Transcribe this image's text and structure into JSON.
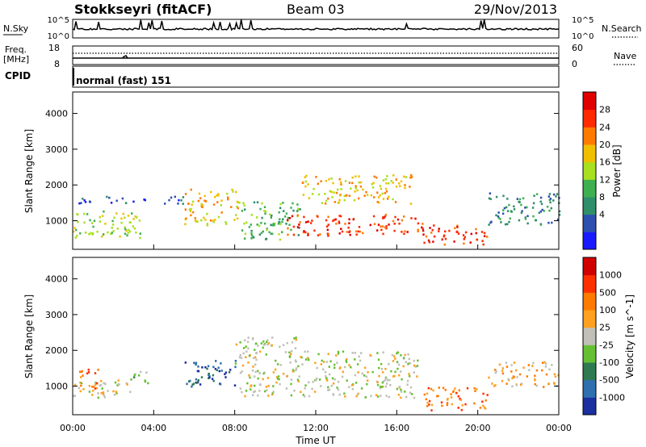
{
  "header": {
    "station": "Stokkseyri (fitACF)",
    "beam": "Beam 03",
    "date": "29/Nov/2013"
  },
  "aux": {
    "nsky_label": "N.Sky",
    "nsky_ticks": [
      "10^5",
      "10^0"
    ],
    "nsearch_label": "N.Search",
    "freq_label_1": "Freq.",
    "freq_label_2": "[MHz]",
    "freq_ticks": [
      "18",
      "8"
    ],
    "nave_label": "Nave",
    "nave_ticks": [
      "60",
      "0"
    ],
    "cpid_label": "CPID",
    "cpid_value": "normal (fast) 151"
  },
  "colors": {
    "power": [
      "#1a1aff",
      "#2d4fb0",
      "#2f8f6a",
      "#3fb050",
      "#a8e020",
      "#f0c000",
      "#ff7a00",
      "#ff2a00",
      "#e00000"
    ],
    "velocity": [
      "#1a2fa0",
      "#2f6fb0",
      "#2f7a50",
      "#66c033",
      "#c0c0b8",
      "#ffa020",
      "#ff7a00",
      "#ff3000",
      "#d00000"
    ]
  },
  "chart_data": [
    {
      "type": "heatmap",
      "name": "power",
      "xlabel": "",
      "ylabel": "Slant Range [km]",
      "ylim": [
        200,
        4600
      ],
      "xlim": [
        "00:00",
        "24:00"
      ],
      "yticks": [
        "1000",
        "2000",
        "3000",
        "4000"
      ],
      "colorbar": {
        "label": "Power [dB]",
        "ticks": [
          "28",
          "24",
          "20",
          "16",
          "12",
          "8",
          "4"
        ]
      },
      "blobs": [
        {
          "t0": 0.0,
          "t1": 3.3,
          "r0": 500,
          "r1": 1300,
          "lvl": 4
        },
        {
          "t0": 0.2,
          "t1": 3.0,
          "r0": 1500,
          "r1": 1700,
          "lvl": 1
        },
        {
          "t0": 3.3,
          "t1": 5.5,
          "r0": 1500,
          "r1": 1700,
          "lvl": 1
        },
        {
          "t0": 5.5,
          "t1": 8.2,
          "r0": 900,
          "r1": 1900,
          "lvl": 5
        },
        {
          "t0": 8.3,
          "t1": 11.3,
          "r0": 500,
          "r1": 1600,
          "lvl": 3
        },
        {
          "t0": 10.5,
          "t1": 17.3,
          "r0": 600,
          "r1": 1200,
          "lvl": 7
        },
        {
          "t0": 11.3,
          "t1": 16.8,
          "r0": 1500,
          "r1": 2300,
          "lvl": 5
        },
        {
          "t0": 17.3,
          "t1": 20.5,
          "r0": 350,
          "r1": 900,
          "lvl": 7
        },
        {
          "t0": 20.5,
          "t1": 24.0,
          "r0": 900,
          "r1": 1800,
          "lvl": 2
        }
      ]
    },
    {
      "type": "heatmap",
      "name": "velocity",
      "xlabel": "Time UT",
      "ylabel": "Slant Range [km]",
      "ylim": [
        200,
        4600
      ],
      "xlim": [
        "00:00",
        "24:00"
      ],
      "xticks": [
        "00:00",
        "04:00",
        "08:00",
        "12:00",
        "16:00",
        "20:00",
        "00:00"
      ],
      "yticks": [
        "1000",
        "2000",
        "3000",
        "4000"
      ],
      "colorbar": {
        "label": "Velocity [m s^-1]",
        "ticks": [
          "1000",
          "500",
          "100",
          "25",
          "-25",
          "-100",
          "-500",
          "-1000"
        ]
      },
      "blobs": [
        {
          "t0": 0.0,
          "t1": 3.0,
          "r0": 700,
          "r1": 1200,
          "lvl": 4
        },
        {
          "t0": 0.3,
          "t1": 1.3,
          "r0": 900,
          "r1": 1600,
          "lvl": 6
        },
        {
          "t0": 2.8,
          "t1": 3.8,
          "r0": 1100,
          "r1": 1500,
          "lvl": 3
        },
        {
          "t0": 5.5,
          "t1": 8.0,
          "r0": 1000,
          "r1": 1800,
          "lvl": 1
        },
        {
          "t0": 8.0,
          "t1": 11.0,
          "r0": 700,
          "r1": 2400,
          "lvl": 4
        },
        {
          "t0": 11.0,
          "t1": 17.0,
          "r0": 700,
          "r1": 2000,
          "lvl": 4
        },
        {
          "t0": 17.3,
          "t1": 20.5,
          "r0": 350,
          "r1": 1000,
          "lvl": 6
        },
        {
          "t0": 20.5,
          "t1": 24.0,
          "r0": 1000,
          "r1": 1700,
          "lvl": 5
        }
      ]
    }
  ]
}
